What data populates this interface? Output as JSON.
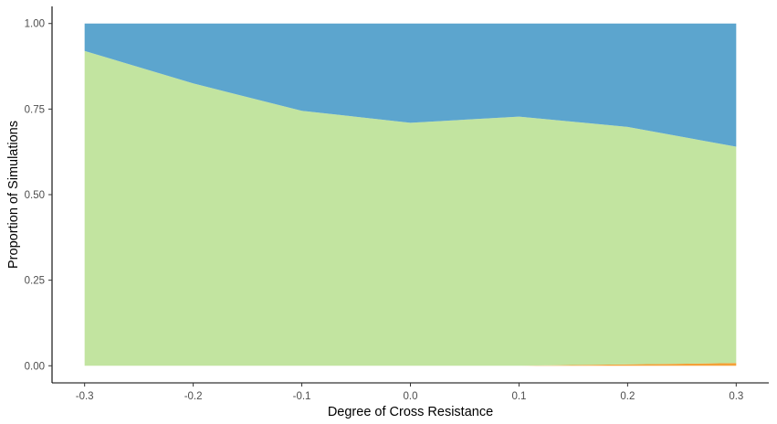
{
  "chart_data": {
    "type": "area",
    "stacked": true,
    "xlabel": "Degree of Cross Resistance",
    "ylabel": "Proportion of Simulations",
    "x": [
      -0.3,
      -0.2,
      -0.1,
      0.0,
      0.1,
      0.2,
      0.3
    ],
    "xlim": [
      -0.33,
      0.33
    ],
    "ylim": [
      -0.05,
      1.05
    ],
    "x_ticks": [
      -0.3,
      -0.2,
      -0.1,
      0.0,
      0.1,
      0.2,
      0.3
    ],
    "x_tick_labels": [
      "-0.3",
      "-0.2",
      "-0.1",
      "0.0",
      "0.1",
      "0.2",
      "0.3"
    ],
    "y_ticks": [
      0.0,
      0.25,
      0.5,
      0.75,
      1.0
    ],
    "y_tick_labels": [
      "0.00",
      "0.25",
      "0.50",
      "0.75",
      "1.00"
    ],
    "grid": false,
    "legend": "none",
    "series": [
      {
        "color": "#F4A038",
        "values": [
          0.0,
          0.0,
          0.0,
          0.0,
          0.0,
          0.004,
          0.008
        ]
      },
      {
        "color": "#C2E4A0",
        "values": [
          0.92,
          0.825,
          0.745,
          0.71,
          0.728,
          0.694,
          0.632
        ]
      },
      {
        "color": "#5CA5CE",
        "values": [
          0.08,
          0.175,
          0.255,
          0.29,
          0.272,
          0.302,
          0.36
        ]
      }
    ]
  }
}
